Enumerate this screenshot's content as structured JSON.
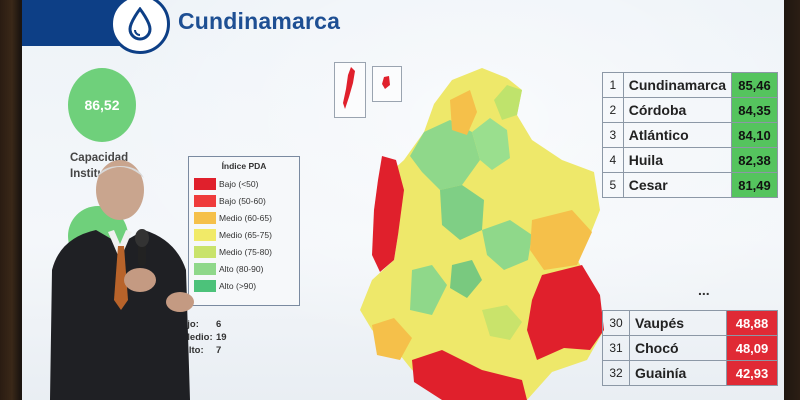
{
  "slide": {
    "title": "Cundinamarca",
    "icon": "water-drop-icon",
    "score_circle": {
      "value": "86,52",
      "color": "#6fd07b"
    },
    "caption_line1": "Capacidad",
    "caption_line2": "Institu"
  },
  "legend": {
    "title": "Índice PDA",
    "items": [
      {
        "label": "Bajo (<50)",
        "color": "#e0202c"
      },
      {
        "label": "Bajo (50-60)",
        "color": "#ef3b3b"
      },
      {
        "label": "Medio (60-65)",
        "color": "#f5c04a"
      },
      {
        "label": "Medio (65-75)",
        "color": "#f1ea68"
      },
      {
        "label": "Medio (75-80)",
        "color": "#c9e36b"
      },
      {
        "label": "Alto (80-90)",
        "color": "#8fd88a"
      },
      {
        "label": "Alto (>90)",
        "color": "#4cc27a"
      }
    ]
  },
  "counts": [
    {
      "label": "ajo:",
      "value": "6"
    },
    {
      "label": "Medio:",
      "value": "19"
    },
    {
      "label": "Alto:",
      "value": "7"
    }
  ],
  "top_ranking": [
    {
      "rank": "1",
      "name": "Cundinamarca",
      "value": "85,46"
    },
    {
      "rank": "2",
      "name": "Córdoba",
      "value": "84,35"
    },
    {
      "rank": "3",
      "name": "Atlántico",
      "value": "84,10"
    },
    {
      "rank": "4",
      "name": "Huila",
      "value": "82,38"
    },
    {
      "rank": "5",
      "name": "Cesar",
      "value": "81,49"
    }
  ],
  "ellipsis": "...",
  "bottom_ranking": [
    {
      "rank": "30",
      "name": "Vaupés",
      "value": "48,88"
    },
    {
      "rank": "31",
      "name": "Chocó",
      "value": "48,09"
    },
    {
      "rank": "32",
      "name": "Guainía",
      "value": "42,93"
    }
  ]
}
